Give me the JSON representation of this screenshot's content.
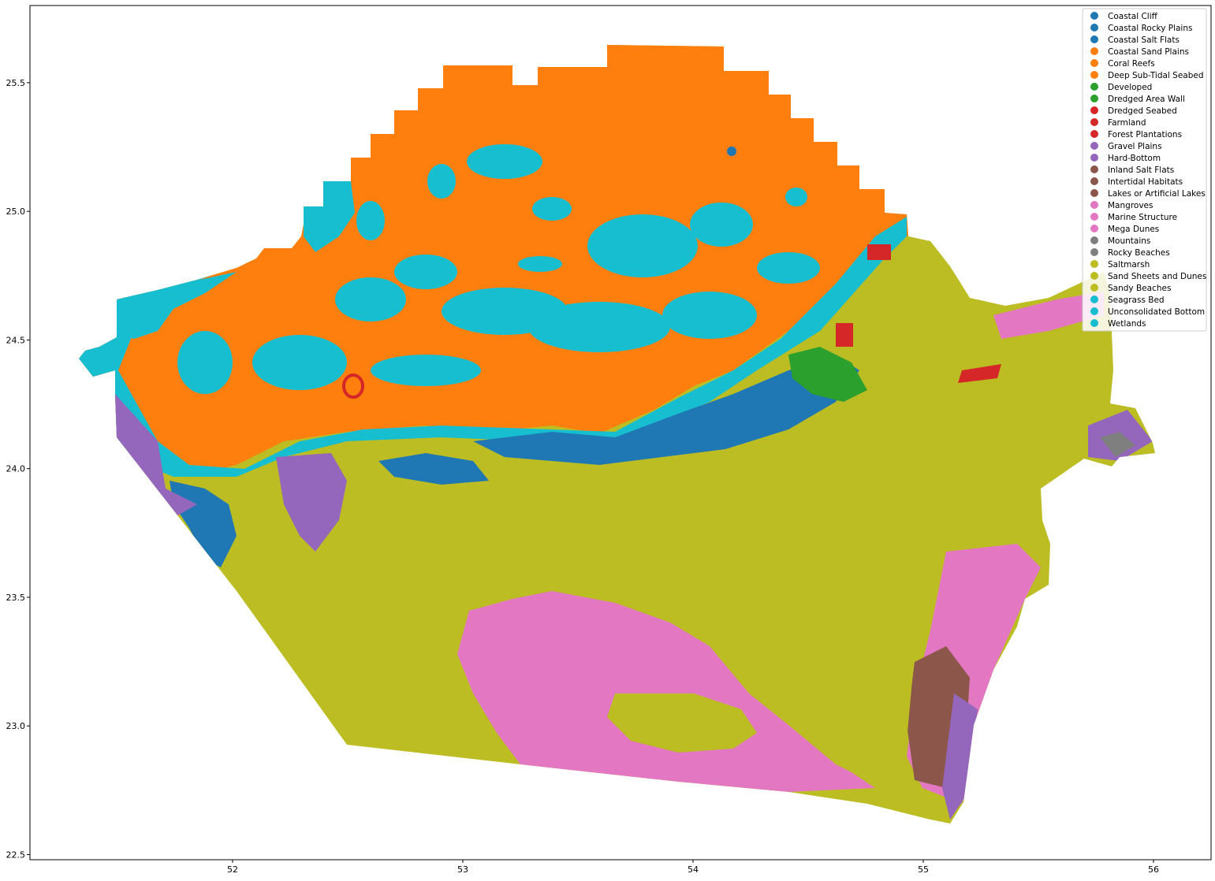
{
  "figure": {
    "xaxis": {
      "ticks": [
        52,
        53,
        54,
        55,
        56
      ],
      "tick_labels": [
        "52",
        "53",
        "54",
        "55",
        "56"
      ],
      "range": [
        51.12,
        56.25
      ]
    },
    "yaxis": {
      "ticks": [
        22.5,
        23.0,
        23.5,
        24.0,
        24.5,
        25.0,
        25.5
      ],
      "tick_labels": [
        "22.5",
        "23.0",
        "23.5",
        "24.0",
        "24.5",
        "25.0",
        "25.5"
      ],
      "range": [
        22.48,
        25.8
      ]
    }
  },
  "legend": {
    "placement": "top-right",
    "entries": [
      {
        "label": "Coastal Cliff",
        "color": "#1f77b4"
      },
      {
        "label": "Coastal Rocky Plains",
        "color": "#1f77b4"
      },
      {
        "label": "Coastal Salt Flats",
        "color": "#1f77b4"
      },
      {
        "label": "Coastal Sand Plains",
        "color": "#ff7f0e"
      },
      {
        "label": "Coral Reefs",
        "color": "#ff7f0e"
      },
      {
        "label": "Deep Sub-Tidal Seabed",
        "color": "#ff7f0e"
      },
      {
        "label": "Developed",
        "color": "#2ca02c"
      },
      {
        "label": "Dredged Area Wall",
        "color": "#2ca02c"
      },
      {
        "label": "Dredged Seabed",
        "color": "#d62728"
      },
      {
        "label": "Farmland",
        "color": "#d62728"
      },
      {
        "label": "Forest Plantations",
        "color": "#d62728"
      },
      {
        "label": "Gravel Plains",
        "color": "#9467bd"
      },
      {
        "label": "Hard-Bottom",
        "color": "#9467bd"
      },
      {
        "label": "Inland Salt Flats",
        "color": "#8c564b"
      },
      {
        "label": "Intertidal Habitats",
        "color": "#8c564b"
      },
      {
        "label": "Lakes or Artificial Lakes",
        "color": "#8c564b"
      },
      {
        "label": "Mangroves",
        "color": "#e377c2"
      },
      {
        "label": "Marine Structure",
        "color": "#e377c2"
      },
      {
        "label": "Mega Dunes",
        "color": "#e377c2"
      },
      {
        "label": "Mountains",
        "color": "#7f7f7f"
      },
      {
        "label": "Rocky Beaches",
        "color": "#7f7f7f"
      },
      {
        "label": "Saltmarsh",
        "color": "#bcbd22"
      },
      {
        "label": "Sand Sheets and Dunes",
        "color": "#bcbd22"
      },
      {
        "label": "Sandy Beaches",
        "color": "#bcbd22"
      },
      {
        "label": "Seagrass Bed",
        "color": "#17becf"
      },
      {
        "label": "Unconsolidated Bottom",
        "color": "#17becf"
      },
      {
        "label": "Wetlands",
        "color": "#17becf"
      }
    ]
  },
  "colors": {
    "blue": "#1f77b4",
    "orange": "#ff7f0e",
    "green": "#2ca02c",
    "red": "#d62728",
    "purple": "#9467bd",
    "brown": "#8c564b",
    "pink": "#e377c2",
    "gray": "#7f7f7f",
    "olive": "#bcbd22",
    "cyan": "#17becf"
  }
}
